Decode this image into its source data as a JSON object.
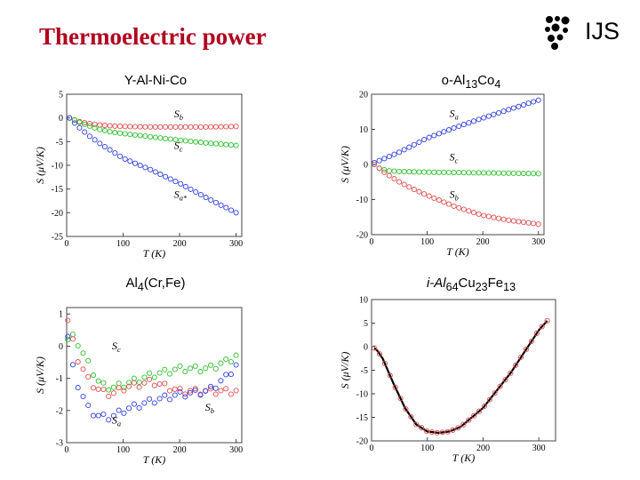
{
  "title": "Thermoelectric power",
  "logo": {
    "text": "IJS"
  },
  "chart_data": [
    {
      "type": "scatter",
      "label": {
        "pre": "Y-Al-Ni-Co",
        "sub1": "",
        "mid": "",
        "sub2": "",
        "end": "",
        "sub3": ""
      },
      "xlabel": "T (K)",
      "ylabel": "S (μV/K)",
      "xlim": [
        0,
        310
      ],
      "ylim": [
        -25,
        5
      ],
      "xticks": [
        0,
        100,
        200,
        300
      ],
      "yticks": [
        5,
        0,
        -5,
        -10,
        -15,
        -20,
        -25
      ],
      "series": [
        {
          "name": "Sb",
          "color": "#e05050",
          "x": [
            5,
            20,
            40,
            60,
            80,
            100,
            150,
            200,
            250,
            300
          ],
          "y": [
            0,
            -0.7,
            -1.2,
            -1.5,
            -1.7,
            -1.8,
            -1.9,
            -1.9,
            -1.9,
            -1.8
          ]
        },
        {
          "name": "Sc",
          "color": "#30c030",
          "x": [
            5,
            20,
            40,
            60,
            80,
            100,
            150,
            200,
            250,
            300
          ],
          "y": [
            0,
            -0.8,
            -1.7,
            -2.5,
            -3.0,
            -3.3,
            -4.0,
            -4.7,
            -5.3,
            -5.8
          ]
        },
        {
          "name": "Sa",
          "color": "#3040e0",
          "x": [
            5,
            20,
            40,
            60,
            80,
            100,
            150,
            200,
            250,
            300
          ],
          "y": [
            0,
            -1.8,
            -3.8,
            -5.5,
            -7.0,
            -8.5,
            -11.0,
            -13.8,
            -17.0,
            -20.0
          ]
        }
      ],
      "annotations": [
        {
          "s": "S",
          "sub": "b",
          "x": 190,
          "y": 0.1
        },
        {
          "s": "S",
          "sub": "c",
          "x": 190,
          "y": -6.5
        },
        {
          "s": "S",
          "sub": "a*",
          "x": 190,
          "y": -16.8
        }
      ]
    },
    {
      "type": "scatter",
      "label": {
        "pre": "o-Al",
        "sub1": "13",
        "mid": "Co",
        "sub2": "4",
        "end": "",
        "sub3": ""
      },
      "xlabel": "T (K)",
      "ylabel": "S (μV/K)",
      "xlim": [
        0,
        310
      ],
      "ylim": [
        -20,
        20
      ],
      "xticks": [
        0,
        100,
        200,
        300
      ],
      "yticks": [
        20,
        10,
        0,
        -10,
        -20
      ],
      "series": [
        {
          "name": "Sa",
          "color": "#3040e0",
          "x": [
            5,
            25,
            50,
            75,
            100,
            150,
            200,
            250,
            300
          ],
          "y": [
            0.5,
            1.8,
            3.5,
            5.5,
            7.5,
            10.5,
            13.2,
            15.8,
            18.3
          ]
        },
        {
          "name": "Sc",
          "color": "#30c030",
          "x": [
            5,
            15,
            30,
            50,
            75,
            100,
            150,
            200,
            250,
            300
          ],
          "y": [
            0,
            -1.2,
            -1.8,
            -2.0,
            -2.1,
            -2.2,
            -2.3,
            -2.4,
            -2.5,
            -2.6
          ]
        },
        {
          "name": "Sb",
          "color": "#e05050",
          "x": [
            5,
            25,
            50,
            75,
            100,
            150,
            200,
            250,
            300
          ],
          "y": [
            0,
            -2.5,
            -5.0,
            -7.0,
            -8.8,
            -12.0,
            -14.5,
            -16.0,
            -17.0
          ]
        }
      ],
      "annotations": [
        {
          "s": "S",
          "sub": "a",
          "x": 140,
          "y": 13.5
        },
        {
          "s": "S",
          "sub": "c",
          "x": 140,
          "y": 1.2
        },
        {
          "s": "S",
          "sub": "b",
          "x": 140,
          "y": -9.5
        }
      ]
    },
    {
      "type": "scatter",
      "label": {
        "pre": "Al",
        "sub1": "4",
        "mid": "(Cr,Fe)",
        "sub2": "",
        "end": "",
        "sub3": ""
      },
      "xlabel": "T (K)",
      "ylabel": "S (μV/K)",
      "xlim": [
        0,
        310
      ],
      "ylim": [
        -3,
        1.2
      ],
      "xticks": [
        0,
        100,
        200,
        300
      ],
      "yticks": [
        1,
        0,
        -1,
        -2,
        -3
      ],
      "series": [
        {
          "name": "Sc",
          "color": "#30c030",
          "x": [
            2,
            10,
            20,
            40,
            60,
            80,
            100,
            150,
            200,
            250,
            280,
            300
          ],
          "y": [
            0.2,
            0.3,
            0.1,
            -0.6,
            -1.2,
            -1.3,
            -1.2,
            -0.9,
            -0.7,
            -0.7,
            -0.5,
            -0.3
          ]
        },
        {
          "name": "Sb",
          "color": "#e05050",
          "x": [
            2,
            10,
            20,
            40,
            60,
            80,
            100,
            150,
            200,
            250,
            300
          ],
          "y": [
            0.8,
            0.2,
            -0.4,
            -1.1,
            -1.4,
            -1.5,
            -1.3,
            -1.1,
            -1.4,
            -1.4,
            -1.4
          ]
        },
        {
          "name": "Sa",
          "color": "#3040e0",
          "x": [
            2,
            10,
            20,
            40,
            60,
            80,
            100,
            150,
            200,
            250,
            280,
            300
          ],
          "y": [
            0.3,
            -0.6,
            -1.2,
            -2.0,
            -2.2,
            -2.2,
            -2.0,
            -1.7,
            -1.5,
            -1.4,
            -1.0,
            -0.6
          ]
        }
      ],
      "annotations": [
        {
          "s": "S",
          "sub": "c",
          "x": 80,
          "y": -0.1
        },
        {
          "s": "S",
          "sub": "b",
          "x": 245,
          "y": -2.0
        },
        {
          "s": "S",
          "sub": "a",
          "x": 80,
          "y": -2.4
        }
      ]
    },
    {
      "type": "line",
      "label": {
        "pre": "i-Al",
        "sub1": "64",
        "mid": "Cu",
        "sub2": "23",
        "end": "Fe",
        "sub3": "13"
      },
      "xlabel": "T (K)",
      "ylabel": "S (μV/K)",
      "xlim": [
        0,
        330
      ],
      "ylim": [
        -20,
        10
      ],
      "xticks": [
        0,
        100,
        200,
        300
      ],
      "yticks": [
        10,
        5,
        0,
        -5,
        -10,
        -15,
        -20
      ],
      "series": [
        {
          "name": "fit",
          "color": "#000000",
          "x": [
            5,
            10,
            20,
            40,
            60,
            80,
            100,
            120,
            140,
            160,
            200,
            250,
            300,
            315
          ],
          "y": [
            -0.3,
            -0.8,
            -2.5,
            -8.0,
            -13.0,
            -16.5,
            -18.0,
            -18.3,
            -18.0,
            -17.0,
            -13.0,
            -5.5,
            3.5,
            5.5
          ]
        },
        {
          "name": "data",
          "color": "#e05050",
          "x": [
            5,
            10,
            20,
            40,
            60,
            80,
            100,
            120,
            140,
            160,
            200,
            250,
            300,
            315
          ],
          "y": [
            -0.3,
            -0.8,
            -2.5,
            -8.0,
            -13.0,
            -16.5,
            -18.0,
            -18.3,
            -18.0,
            -17.0,
            -13.0,
            -5.5,
            3.5,
            5.5
          ]
        }
      ],
      "annotations": []
    }
  ]
}
